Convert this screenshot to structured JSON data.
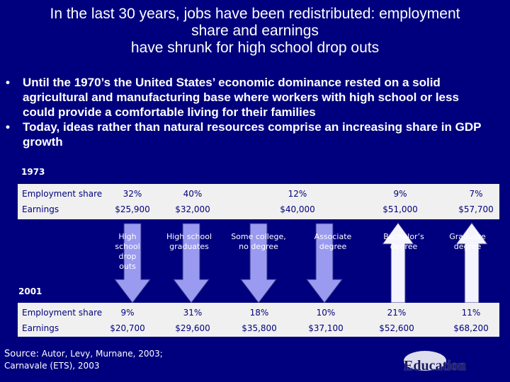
{
  "title": [
    "In the last 30 years, jobs have been redistributed: employment",
    "share and earnings",
    "have shrunk for high school drop outs"
  ],
  "bullets": [
    "Until the 1970’s the United States’ economic dominance rested on a solid agricultural and manufacturing base where workers with high school or less could provide a comfortable living for their families",
    "Today, ideas rather than natural resources comprise an increasing share in GDP growth"
  ],
  "period_1973": {
    "label": "1973",
    "rows": [
      {
        "label": "Employment share",
        "values": [
          "32%",
          "40%",
          "12%",
          "9%",
          "7%"
        ]
      },
      {
        "label": "Earnings",
        "values": [
          "$25,900",
          "$32,000",
          "$40,000",
          "$51,000",
          "$57,700"
        ]
      }
    ]
  },
  "categories": [
    "High school drop outs",
    "High school graduates",
    "Some college, no degree",
    "Associate degree",
    "Bachelor’s degree",
    "Graduate degree"
  ],
  "period_2001": {
    "label": "2001",
    "rows": [
      {
        "label": "Employment share",
        "values": [
          "9%",
          "31%",
          "18%",
          "10%",
          "21%",
          "11%"
        ]
      },
      {
        "label": "Earnings",
        "values": [
          "$20,700",
          "$29,600",
          "$35,800",
          "$37,100",
          "$52,600",
          "$68,200"
        ]
      }
    ]
  },
  "source": {
    "prefix": "Source:",
    "line1": "Autor, Levy, Murnane, 2003;",
    "line2": "Carnavale (ETS), 2003"
  },
  "logo": "Education"
}
